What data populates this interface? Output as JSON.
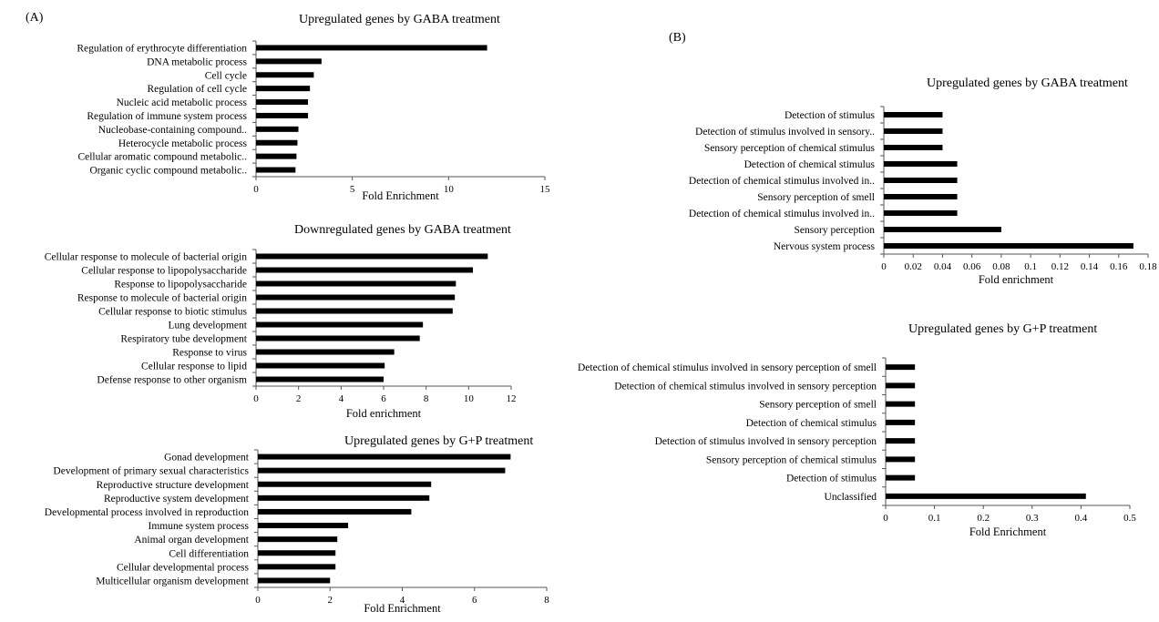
{
  "panels": {
    "a": "(A)",
    "b": "(B)"
  },
  "colors": {
    "bar": "#000000",
    "axis": "#555555"
  },
  "chart_data": [
    {
      "type": "bar",
      "orientation": "horizontal",
      "title": "Upregulated genes by GABA treatment",
      "xlabel": "Fold Enrichment",
      "categories": [
        "Regulation of erythrocyte differentiation",
        "DNA metabolic process",
        "Cell cycle",
        "Regulation of cell cycle",
        "Nucleic acid metabolic process",
        "Regulation of immune system process",
        "Nucleobase-containing compound..",
        "Heterocycle metabolic process",
        "Cellular aromatic compound metabolic..",
        "Organic cyclic compound metabolic.."
      ],
      "values": [
        12,
        3.4,
        3.0,
        2.8,
        2.7,
        2.7,
        2.2,
        2.15,
        2.1,
        2.05
      ],
      "xlim": [
        0,
        15
      ],
      "xticks": [
        0,
        5,
        10,
        15
      ]
    },
    {
      "type": "bar",
      "orientation": "horizontal",
      "title": "Downregulated genes by GABA treatment",
      "xlabel": "Fold enrichment",
      "categories": [
        "Cellular response to molecule of bacterial origin",
        "Cellular response to lipopolysaccharide",
        "Response to lipopolysaccharide",
        "Response to molecule of bacterial origin",
        "Cellular response to biotic stimulus",
        "Lung development",
        "Respiratory tube development",
        "Response to virus",
        "Cellular response to lipid",
        "Defense response to other organism"
      ],
      "values": [
        10.9,
        10.2,
        9.4,
        9.35,
        9.25,
        7.85,
        7.7,
        6.5,
        6.05,
        6.0
      ],
      "xlim": [
        0,
        12
      ],
      "xticks": [
        0,
        2,
        4,
        6,
        8,
        10,
        12
      ]
    },
    {
      "type": "bar",
      "orientation": "horizontal",
      "title": "Upregulated genes by G+P treatment",
      "xlabel": "Fold Enrichment",
      "categories": [
        "Gonad development",
        "Development of primary sexual characteristics",
        "Reproductive structure development",
        "Reproductive system development",
        "Developmental process involved in reproduction",
        "Immune system process",
        "Animal organ development",
        "Cell differentiation",
        "Cellular developmental process",
        "Multicellular organism development"
      ],
      "values": [
        7.0,
        6.85,
        4.8,
        4.75,
        4.25,
        2.5,
        2.2,
        2.15,
        2.15,
        2.0
      ],
      "xlim": [
        0,
        8
      ],
      "xticks": [
        0,
        2,
        4,
        6,
        8
      ]
    },
    {
      "type": "bar",
      "orientation": "horizontal",
      "title": "Upregulated genes by GABA treatment",
      "xlabel": "Fold enrichment",
      "categories": [
        "Detection of stimulus",
        "Detection of stimulus involved in sensory..",
        "Sensory perception of chemical stimulus",
        "Detection of chemical stimulus",
        "Detection of chemical stimulus involved in..",
        "Sensory perception of smell",
        "Detection of chemical stimulus involved in..",
        "Sensory perception",
        "Nervous system process"
      ],
      "values": [
        0.04,
        0.04,
        0.04,
        0.05,
        0.05,
        0.05,
        0.05,
        0.08,
        0.17
      ],
      "xlim": [
        0,
        0.18
      ],
      "xticks": [
        0,
        0.02,
        0.04,
        0.06,
        0.08,
        0.1,
        0.12,
        0.14,
        0.16,
        0.18
      ]
    },
    {
      "type": "bar",
      "orientation": "horizontal",
      "title": "Upregulated genes by G+P treatment",
      "xlabel": "Fold Enrichment",
      "categories": [
        "Detection of chemical stimulus involved in sensory perception of smell",
        "Detection of chemical stimulus involved in sensory perception",
        "Sensory perception of smell",
        "Detection of chemical stimulus",
        "Detection of stimulus involved in sensory perception",
        "Sensory perception of chemical stimulus",
        "Detection of stimulus",
        "Unclassified"
      ],
      "values": [
        0.06,
        0.06,
        0.06,
        0.06,
        0.06,
        0.06,
        0.06,
        0.41
      ],
      "xlim": [
        0,
        0.5
      ],
      "xticks": [
        0,
        0.1,
        0.2,
        0.3,
        0.4,
        0.5
      ]
    }
  ]
}
